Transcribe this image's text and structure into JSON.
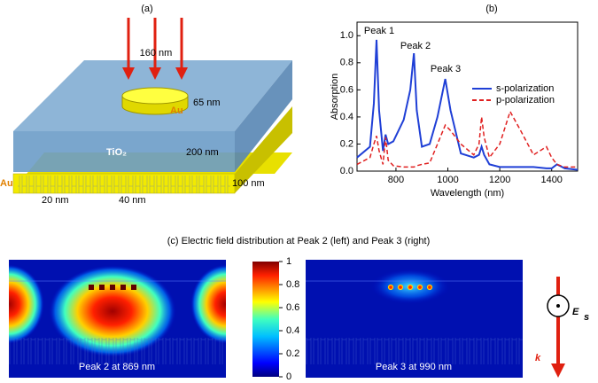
{
  "panel_a": {
    "label": "(a)",
    "disk_diameter": "160 nm",
    "disk_height": "65 nm",
    "disk_material": "Au",
    "slab_material": "TiO₂",
    "slab_thickness": "200 nm",
    "grating_material": "Au",
    "grating_height": "100 nm",
    "gap_width": "20 nm",
    "period": "40 nm"
  },
  "chart_data": {
    "type": "line",
    "panel_label": "(b)",
    "x_label": "Wavelength (nm)",
    "y_label": "Absorption",
    "x": [
      650,
      700,
      715,
      725,
      735,
      750,
      760,
      770,
      790,
      830,
      855,
      869,
      880,
      900,
      930,
      960,
      990,
      1010,
      1050,
      1100,
      1120,
      1130,
      1140,
      1160,
      1200,
      1240,
      1280,
      1330,
      1380,
      1400,
      1420,
      1450,
      1500
    ],
    "series": [
      {
        "name": "s-polarization",
        "color": "#1f3fd6",
        "dash": "solid",
        "values": [
          0.1,
          0.18,
          0.5,
          0.97,
          0.45,
          0.15,
          0.27,
          0.2,
          0.22,
          0.38,
          0.6,
          0.87,
          0.45,
          0.18,
          0.2,
          0.4,
          0.68,
          0.45,
          0.13,
          0.1,
          0.12,
          0.18,
          0.12,
          0.05,
          0.03,
          0.03,
          0.03,
          0.03,
          0.02,
          0.02,
          0.05,
          0.02,
          0.01
        ]
      },
      {
        "name": "p-polarization",
        "color": "#e02020",
        "dash": "dashed",
        "values": [
          0.05,
          0.1,
          0.2,
          0.26,
          0.15,
          0.05,
          0.25,
          0.08,
          0.04,
          0.03,
          0.03,
          0.03,
          0.04,
          0.05,
          0.06,
          0.2,
          0.34,
          0.3,
          0.2,
          0.12,
          0.2,
          0.4,
          0.25,
          0.1,
          0.2,
          0.44,
          0.3,
          0.12,
          0.18,
          0.1,
          0.05,
          0.03,
          0.03
        ]
      }
    ],
    "annotations": [
      "Peak 1",
      "Peak 2",
      "Peak 3"
    ],
    "xlim": [
      650,
      1500
    ],
    "xticks": [
      800,
      1000,
      1200,
      1400
    ],
    "ylim": [
      0,
      1.1
    ],
    "yticks": [
      {
        "value": 0,
        "label": "0.0"
      },
      0.2,
      0.4,
      0.6,
      0.8,
      {
        "value": 1,
        "label": "1.0"
      }
    ],
    "legend": "right"
  },
  "panel_c": {
    "title": "(c) Electric field distribution at Peak 2 (left) and Peak 3 (right)",
    "left_caption": "Peak 2 at 869 nm",
    "right_caption": "Peak 3 at 990 nm",
    "colorbar": {
      "lim": [
        0,
        1
      ],
      "ticks": [
        0,
        0.2,
        0.4,
        0.6,
        0.8,
        1
      ]
    },
    "field_symbol": "E",
    "field_subscript": "s",
    "wavevector_symbol": "k"
  }
}
